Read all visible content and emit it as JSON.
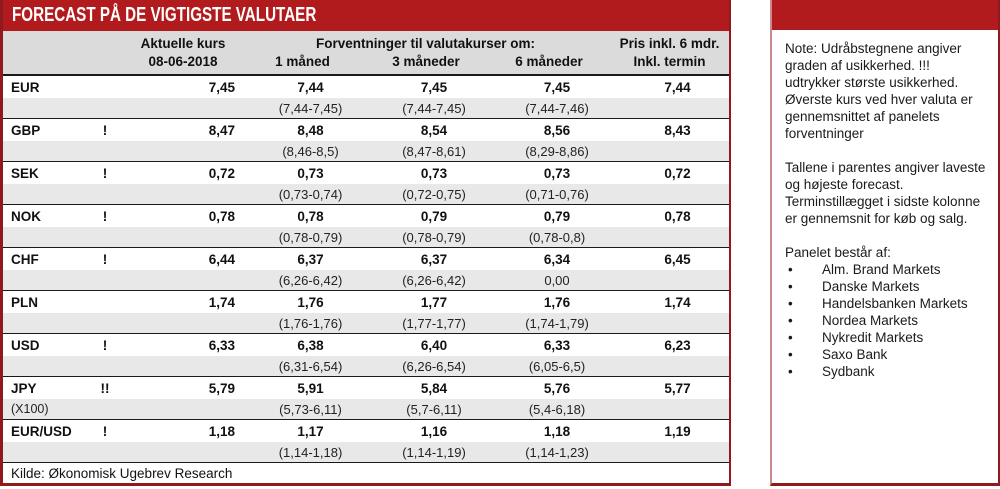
{
  "title": "FORECAST PÅ DE VIGTIGSTE VALUTAER",
  "chart_data": {
    "type": "table",
    "title": "FORECAST PÅ DE VIGTIGSTE VALUTAER",
    "header": {
      "current_label": "Aktuelle kurs",
      "current_date": "08-06-2018",
      "forecast_group": "Forventninger til valutakurser om:",
      "m1_label": "1 måned",
      "m3_label": "3 måneder",
      "m6_label": "6 måneder",
      "termin_label1": "Pris inkl. 6 mdr.",
      "termin_label2": "Inkl. termin"
    },
    "rows": [
      {
        "currency": "EUR",
        "sub": "",
        "mark": "",
        "current": "7,45",
        "m1": "7,44",
        "m3": "7,45",
        "m6": "7,45",
        "termin": "7,44",
        "r1": "(7,44-7,45)",
        "r3": "(7,44-7,45)",
        "r6": "(7,44-7,46)"
      },
      {
        "currency": "GBP",
        "sub": "",
        "mark": "!",
        "current": "8,47",
        "m1": "8,48",
        "m3": "8,54",
        "m6": "8,56",
        "termin": "8,43",
        "r1": "(8,46-8,5)",
        "r3": "(8,47-8,61)",
        "r6": "(8,29-8,86)"
      },
      {
        "currency": "SEK",
        "sub": "",
        "mark": "!",
        "current": "0,72",
        "m1": "0,73",
        "m3": "0,73",
        "m6": "0,73",
        "termin": "0,72",
        "r1": "(0,73-0,74)",
        "r3": "(0,72-0,75)",
        "r6": "(0,71-0,76)"
      },
      {
        "currency": "NOK",
        "sub": "",
        "mark": "!",
        "current": "0,78",
        "m1": "0,78",
        "m3": "0,79",
        "m6": "0,79",
        "termin": "0,78",
        "r1": "(0,78-0,79)",
        "r3": "(0,78-0,79)",
        "r6": "(0,78-0,8)"
      },
      {
        "currency": "CHF",
        "sub": "",
        "mark": "!",
        "current": "6,44",
        "m1": "6,37",
        "m3": "6,37",
        "m6": "6,34",
        "termin": "6,45",
        "r1": "(6,26-6,42)",
        "r3": "(6,26-6,42)",
        "r6": "0,00"
      },
      {
        "currency": "PLN",
        "sub": "",
        "mark": "",
        "current": "1,74",
        "m1": "1,76",
        "m3": "1,77",
        "m6": "1,76",
        "termin": "1,74",
        "r1": "(1,76-1,76)",
        "r3": "(1,77-1,77)",
        "r6": "(1,74-1,79)"
      },
      {
        "currency": "USD",
        "sub": "",
        "mark": "!",
        "current": "6,33",
        "m1": "6,38",
        "m3": "6,40",
        "m6": "6,33",
        "termin": "6,23",
        "r1": "(6,31-6,54)",
        "r3": "(6,26-6,54)",
        "r6": "(6,05-6,5)"
      },
      {
        "currency": "JPY",
        "sub": "(X100)",
        "mark": "!!",
        "current": "5,79",
        "m1": "5,91",
        "m3": "5,84",
        "m6": "5,76",
        "termin": "5,77",
        "r1": "(5,73-6,11)",
        "r3": "(5,7-6,11)",
        "r6": "(5,4-6,18)"
      },
      {
        "currency": "EUR/USD",
        "sub": "",
        "mark": "!",
        "current": "1,18",
        "m1": "1,17",
        "m3": "1,16",
        "m6": "1,18",
        "termin": "1,19",
        "r1": "(1,14-1,18)",
        "r3": "(1,14-1,19)",
        "r6": "(1,14-1,23)"
      }
    ],
    "source": "Kilde: Økonomisk Ugebrev Research"
  },
  "note": {
    "para1": "Note: Udråbstegnene angiver graden af usikkerhed. !!! udtrykker største usikkerhed. Øverste kurs ved hver valuta er gennemsnittet af panelets forventninger",
    "para2": "Tallene i parentes angiver laveste og højeste forecast. Terminstillægget i sidste kolonne er gennemsnit for køb og salg.",
    "panel_title": "Panelet består af:",
    "panel_members": [
      "Alm. Brand Markets",
      "Danske Markets",
      "Handelsbanken Markets",
      "Nordea Markets",
      "Nykredit Markets",
      "Saxo Bank",
      "Sydbank"
    ]
  },
  "colors": {
    "bar_red": "#B21B1E",
    "border_dark_red": "#8F191C",
    "border_light_red": "#CB8A8A",
    "header_gray": "#DBDBDB",
    "range_gray": "#E8E8E8"
  }
}
